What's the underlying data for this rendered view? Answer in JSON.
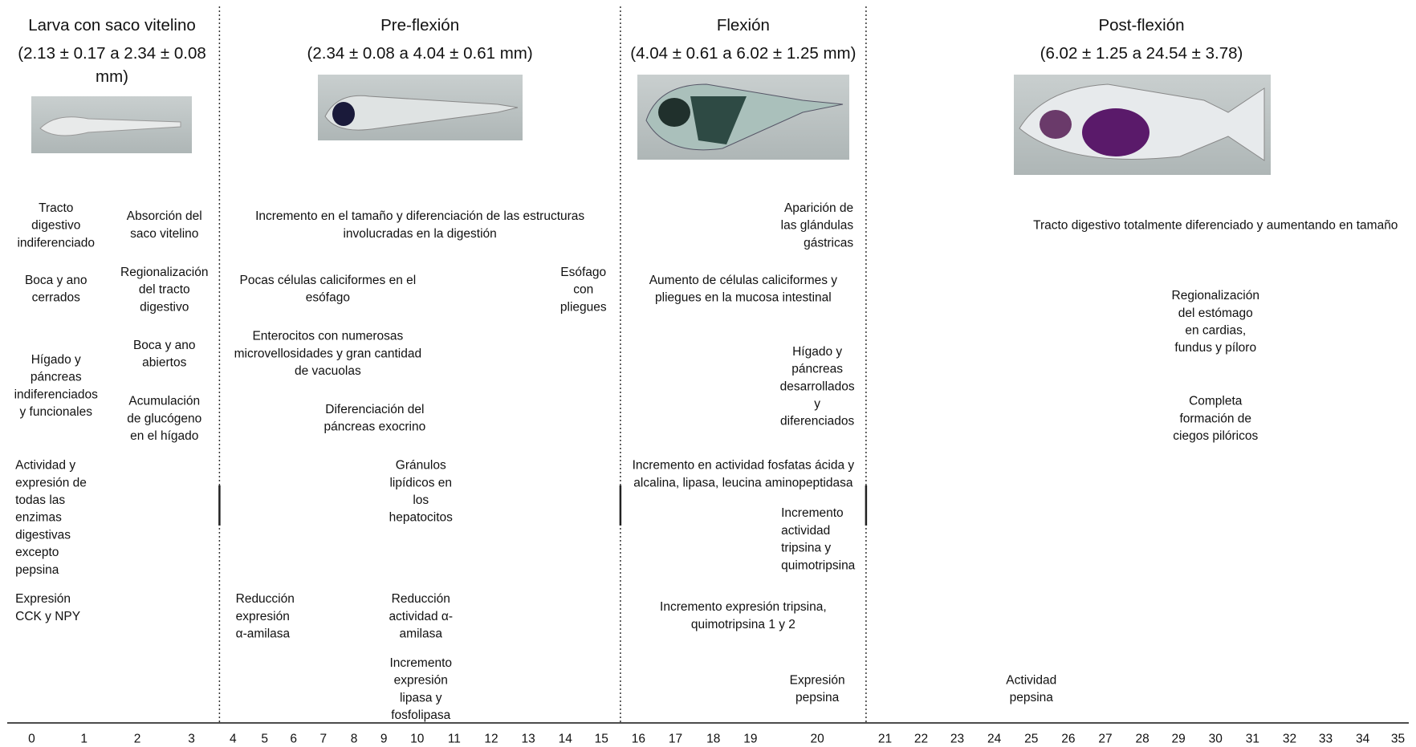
{
  "stages": [
    {
      "title": "Larva con saco vitelino",
      "range": [
        "(2.13 ± 0.17 a 2.34 ± 0.08",
        "mm)"
      ],
      "annotations": [
        {
          "lines": [
            "Tracto",
            "digestivo",
            "indiferenciado"
          ]
        },
        {
          "lines": [
            "Absorción del",
            "saco vitelino"
          ]
        },
        {
          "lines": [
            "Boca y ano",
            "cerrados"
          ]
        },
        {
          "lines": [
            "Regionalización",
            "del tracto",
            "digestivo"
          ]
        },
        {
          "lines": [
            "Hígado y",
            "páncreas",
            "indiferenciados",
            "y funcionales"
          ]
        },
        {
          "lines": [
            "Boca y ano",
            "abiertos"
          ]
        },
        {
          "lines": [
            "Acumulación",
            "de glucógeno",
            "en el hígado"
          ]
        },
        {
          "lines": [
            "Actividad y",
            "expresión de",
            "todas las",
            "enzimas",
            "digestivas",
            "excepto",
            "pepsina"
          ]
        },
        {
          "lines": [
            "Expresión",
            "CCK y NPY"
          ]
        }
      ]
    },
    {
      "title": "Pre-flexión",
      "range": [
        "(2.34 ± 0.08 a 4.04 ± 0.61 mm)"
      ],
      "annotations": [
        {
          "lines": [
            "Incremento en el tamaño y diferenciación de las estructuras",
            "involucradas en la digestión"
          ]
        },
        {
          "lines": [
            "Pocas células caliciformes en el",
            "esófago"
          ]
        },
        {
          "lines": [
            "Esófago",
            "con",
            "pliegues"
          ]
        },
        {
          "lines": [
            "Enterocitos con numerosas",
            "microvellosidades y gran cantidad",
            "de vacuolas"
          ]
        },
        {
          "lines": [
            "Diferenciación del",
            "páncreas exocrino"
          ]
        },
        {
          "lines": [
            "Gránulos",
            "lipídicos en",
            "los",
            "hepatocitos"
          ]
        },
        {
          "lines": [
            "Reducción",
            "expresión",
            "α-amilasa"
          ]
        },
        {
          "lines": [
            "Reducción",
            "actividad α-",
            "amilasa"
          ]
        },
        {
          "lines": [
            "Incremento",
            "expresión",
            "lipasa y",
            "fosfolipasa"
          ]
        }
      ]
    },
    {
      "title": "Flexión",
      "range": [
        "(4.04 ± 0.61 a 6.02 ± 1.25 mm)"
      ],
      "annotations": [
        {
          "lines": [
            "Aparición de",
            "las glándulas",
            "gástricas"
          ]
        },
        {
          "lines": [
            "Aumento de células caliciformes y",
            "pliegues en la mucosa intestinal"
          ]
        },
        {
          "lines": [
            "Hígado y",
            "páncreas",
            "desarrollados",
            "y",
            "diferenciados"
          ]
        },
        {
          "lines": [
            "Incremento en actividad fosfatas ácida y",
            "alcalina, lipasa, leucina aminopeptidasa"
          ]
        },
        {
          "lines": [
            "Incremento",
            "actividad",
            "tripsina y",
            "quimotripsina"
          ]
        },
        {
          "lines": [
            "Incremento expresión tripsina,",
            "quimotripsina 1 y 2"
          ]
        },
        {
          "lines": [
            "Expresión",
            "pepsina"
          ]
        }
      ]
    },
    {
      "title": "Post-flexión",
      "range": [
        "(6.02 ± 1.25 a 24.54 ± 3.78)"
      ],
      "annotations": [
        {
          "lines": [
            "Tracto digestivo totalmente diferenciado y aumentando en tamaño"
          ]
        },
        {
          "lines": [
            "Regionalización",
            "del estómago",
            "en cardias,",
            "fundus y píloro"
          ]
        },
        {
          "lines": [
            "Completa",
            "formación de",
            "ciegos pilóricos"
          ]
        },
        {
          "lines": [
            "Actividad",
            "pepsina"
          ]
        }
      ]
    }
  ],
  "axis": {
    "ticks": [
      0,
      1,
      2,
      3,
      4,
      5,
      6,
      7,
      8,
      9,
      10,
      11,
      12,
      13,
      14,
      15,
      16,
      17,
      18,
      19,
      20,
      21,
      22,
      23,
      24,
      25,
      26,
      27,
      28,
      29,
      30,
      31,
      32,
      33,
      34,
      35
    ]
  }
}
